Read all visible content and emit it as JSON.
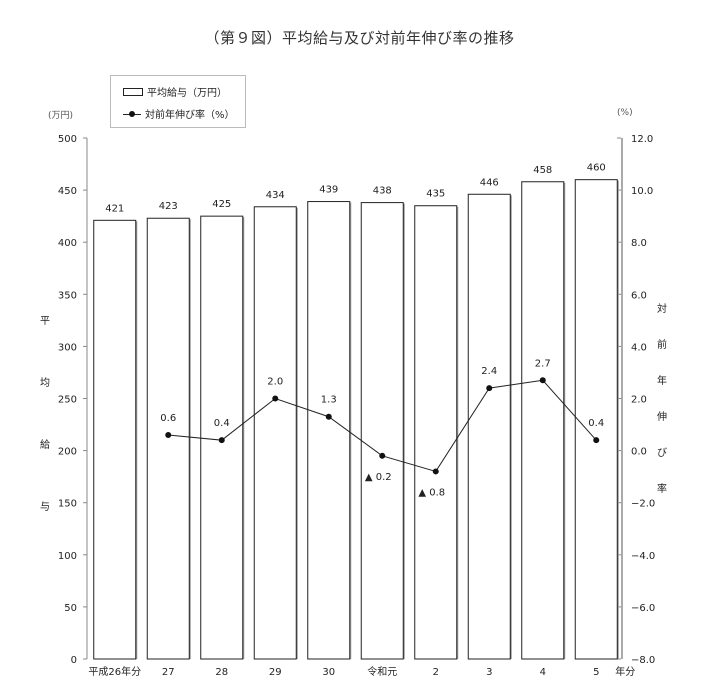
{
  "title": "（第９図）平均給与及び対前年伸び率の推移",
  "legend": {
    "bar_label": "平均給与（万円）",
    "line_label": "対前年伸び率（%）"
  },
  "left_axis": {
    "unit": "(万円)",
    "title_chars": [
      "平",
      "均",
      "給",
      "与"
    ],
    "ticks": [
      "500",
      "450",
      "400",
      "350",
      "300",
      "250",
      "200",
      "150",
      "100",
      "50",
      "0"
    ]
  },
  "right_axis": {
    "unit": "(%)",
    "title_chars": [
      "対",
      "前",
      "年",
      "伸",
      "び",
      "率"
    ],
    "ticks": [
      "12.0",
      "10.0",
      "8.0",
      "6.0",
      "4.0",
      "2.0",
      "0.0",
      "−2.0",
      "−4.0",
      "−6.0",
      "−8.0"
    ]
  },
  "x_axis": {
    "suffix": "年分"
  },
  "chart_data": {
    "type": "bar+line",
    "title": "（第９図）平均給与及び対前年伸び率の推移",
    "categories": [
      "平成26年分",
      "27",
      "28",
      "29",
      "30",
      "令和元",
      "2",
      "3",
      "4",
      "5"
    ],
    "series": [
      {
        "name": "平均給与（万円）",
        "type": "bar",
        "axis": "left",
        "values": [
          421,
          423,
          425,
          434,
          439,
          438,
          435,
          446,
          458,
          460
        ],
        "labels": [
          "421",
          "423",
          "425",
          "434",
          "439",
          "438",
          "435",
          "446",
          "458",
          "460"
        ]
      },
      {
        "name": "対前年伸び率（%）",
        "type": "line",
        "axis": "right",
        "values": [
          null,
          0.6,
          0.4,
          2.0,
          1.3,
          -0.2,
          -0.8,
          2.4,
          2.7,
          0.4
        ],
        "labels": [
          "",
          "0.6",
          "0.4",
          "2.0",
          "1.3",
          "▲ 0.2",
          "▲ 0.8",
          "2.4",
          "2.7",
          "0.4"
        ]
      }
    ],
    "ylabel_left": "平均給与",
    "ylabel_right": "対前年伸び率",
    "ylim_left": [
      0,
      500
    ],
    "ylim_right": [
      -8.0,
      12.0
    ],
    "left_unit": "(万円)",
    "right_unit": "(%)",
    "x_suffix": "年分",
    "grid": false,
    "legend_position": "top-left"
  }
}
